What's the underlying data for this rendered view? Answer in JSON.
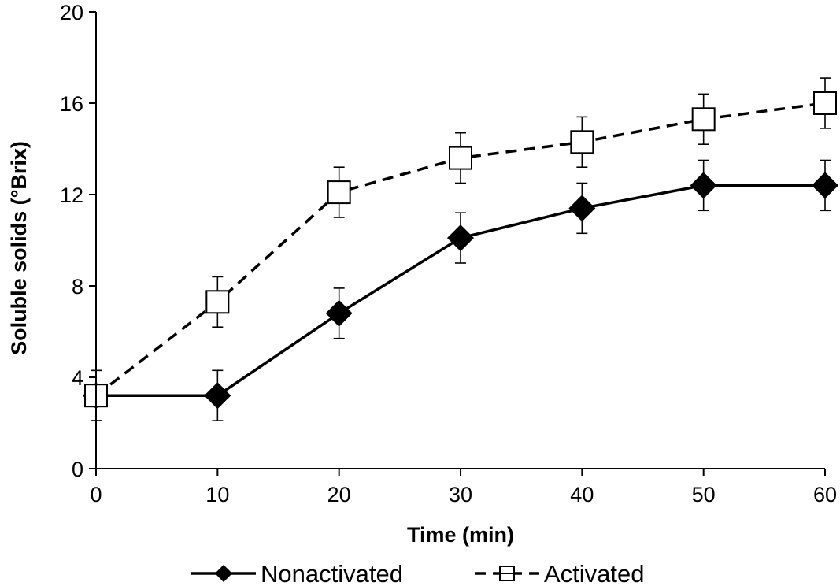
{
  "chart_data": {
    "type": "line",
    "title": "",
    "xlabel": "Time (min)",
    "ylabel": "Soluble solids (°Brix)",
    "x": [
      0,
      10,
      20,
      30,
      40,
      50,
      60
    ],
    "xlim": [
      0,
      60
    ],
    "ylim": [
      0,
      20
    ],
    "xticks": [
      0,
      10,
      20,
      30,
      40,
      50,
      60
    ],
    "yticks": [
      0,
      4,
      8,
      12,
      16,
      20
    ],
    "grid": false,
    "legend_position": "bottom",
    "series": [
      {
        "name": "Nonactivated",
        "values": [
          3.2,
          3.2,
          6.8,
          10.1,
          11.4,
          12.4,
          12.4
        ],
        "error": [
          1.1,
          1.1,
          1.1,
          1.1,
          1.1,
          1.1,
          1.1
        ],
        "marker": "filled-diamond",
        "line_style": "solid",
        "color": "#000000"
      },
      {
        "name": "Activated",
        "values": [
          3.2,
          7.3,
          12.1,
          13.6,
          14.3,
          15.3,
          16.0
        ],
        "error": [
          1.1,
          1.1,
          1.1,
          1.1,
          1.1,
          1.1,
          1.1
        ],
        "marker": "open-square",
        "line_style": "dashed",
        "color": "#000000"
      }
    ]
  }
}
